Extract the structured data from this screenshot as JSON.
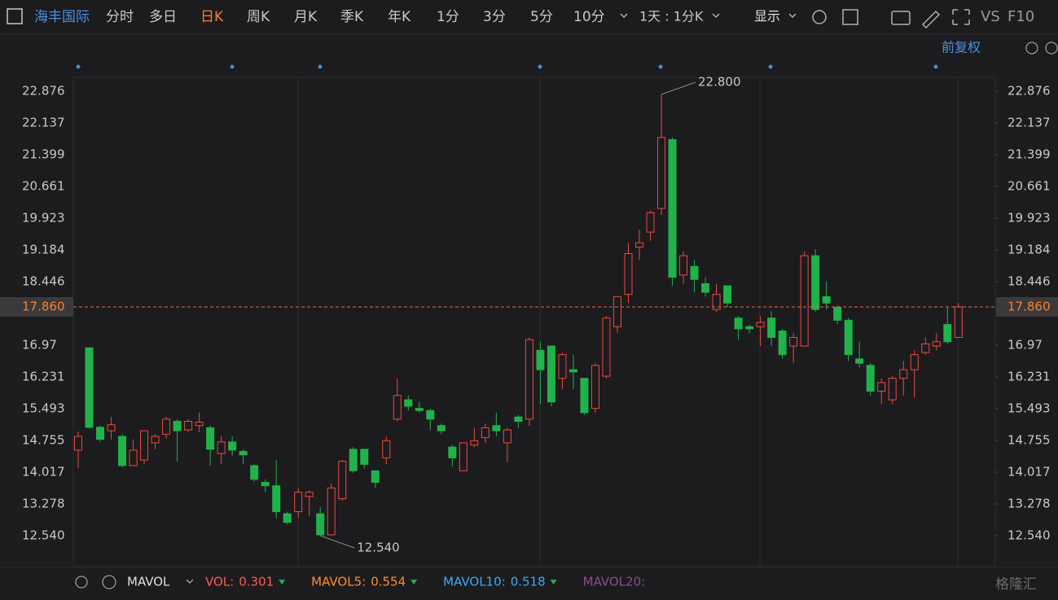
{
  "toolbar": {
    "symbol": "海丰国际",
    "periods": [
      "分时",
      "多日",
      "日K",
      "周K",
      "月K",
      "季K",
      "年K",
      "1分",
      "3分",
      "5分",
      "10分"
    ],
    "active_period": 2,
    "interval": "1天 : 1分K",
    "display": "显示",
    "vs": "VS",
    "f10": "F10"
  },
  "adjust": "前复权",
  "indicator": {
    "name": "MAVOL",
    "items": [
      {
        "label": "VOL:",
        "value": "0.301",
        "color": "#ff5a4f"
      },
      {
        "label": "MAVOL5:",
        "value": "0.554",
        "color": "#ff8c2e"
      },
      {
        "label": "MAVOL10:",
        "value": "0.518",
        "color": "#3fa9f5"
      },
      {
        "label": "MAVOL20:",
        "color": "#8e4b8a"
      }
    ]
  },
  "watermark": "格隆汇",
  "chart_data": {
    "type": "candlestick",
    "up_color": "#f0483e",
    "down_color": "#21b24b",
    "ylim": [
      11.84,
      23.198
    ],
    "yticks": [
      22.876,
      22.137,
      21.399,
      20.661,
      19.923,
      19.184,
      18.446,
      16.97,
      16.231,
      15.493,
      14.755,
      14.017,
      13.278,
      {
        "value": 12.54,
        "label": "12.540"
      }
    ],
    "last_price": {
      "value": 17.86,
      "label": "17.860"
    },
    "annotations": [
      {
        "value": 22.8,
        "label": "22.800",
        "index": 53
      },
      {
        "value": 12.54,
        "label": "12.540",
        "index": 22
      }
    ],
    "series": {
      "open": [
        14.53,
        16.91,
        15.06,
        14.98,
        14.85,
        14.17,
        14.3,
        14.7,
        14.9,
        15.2,
        15.0,
        15.1,
        15.05,
        14.45,
        14.72,
        14.5,
        14.17,
        13.78,
        13.7,
        13.05,
        13.1,
        13.45,
        13.05,
        12.56,
        13.4,
        14.55,
        14.55,
        14.05,
        14.35,
        15.25,
        15.7,
        15.5,
        15.45,
        15.1,
        14.6,
        14.05,
        14.65,
        14.82,
        15.1,
        14.7,
        15.3,
        15.25,
        16.85,
        16.95,
        16.2,
        16.4,
        16.2,
        15.5,
        16.25,
        17.4,
        18.15,
        19.25,
        19.6,
        20.15,
        21.75,
        18.6,
        18.8,
        18.4,
        17.8,
        18.35,
        17.6,
        17.4,
        17.4,
        17.6,
        17.3,
        16.95,
        16.95,
        19.05,
        18.1,
        17.85,
        17.55,
        16.65,
        16.5,
        15.9,
        15.7,
        16.2,
        16.4,
        16.8,
        16.95,
        17.45,
        17.15
      ],
      "high": [
        14.96,
        16.91,
        15.1,
        15.3,
        14.9,
        14.78,
        14.99,
        14.9,
        15.3,
        15.25,
        15.25,
        15.4,
        15.1,
        14.85,
        14.85,
        14.55,
        14.2,
        13.85,
        14.3,
        13.1,
        13.65,
        13.6,
        13.2,
        13.75,
        14.3,
        14.6,
        14.55,
        14.05,
        14.85,
        16.2,
        15.8,
        15.65,
        15.5,
        15.15,
        14.65,
        14.7,
        15.05,
        15.15,
        15.4,
        15.05,
        15.35,
        17.15,
        17.05,
        16.95,
        16.8,
        16.75,
        16.2,
        16.55,
        17.65,
        18.1,
        19.35,
        19.65,
        20.1,
        22.8,
        21.8,
        19.15,
        18.95,
        18.55,
        18.4,
        18.35,
        17.65,
        17.45,
        17.65,
        17.75,
        17.35,
        17.25,
        19.15,
        19.2,
        18.45,
        17.9,
        17.6,
        17.05,
        16.55,
        16.2,
        16.25,
        16.6,
        16.85,
        17.15,
        17.25,
        17.85,
        17.95
      ],
      "low": [
        14.11,
        15.03,
        14.72,
        14.78,
        14.12,
        14.17,
        14.2,
        14.55,
        14.8,
        14.26,
        14.95,
        14.95,
        14.17,
        14.2,
        14.4,
        14.2,
        13.8,
        13.55,
        12.95,
        12.8,
        12.95,
        13.0,
        12.54,
        12.55,
        13.35,
        14.0,
        14.1,
        13.65,
        14.2,
        15.2,
        15.45,
        15.4,
        15.0,
        14.9,
        14.15,
        14.05,
        14.6,
        14.7,
        14.85,
        14.25,
        15.05,
        15.1,
        15.6,
        15.55,
        15.95,
        15.95,
        15.35,
        15.4,
        16.2,
        17.25,
        17.95,
        18.95,
        19.4,
        20.0,
        18.35,
        18.4,
        18.2,
        18.1,
        17.75,
        17.85,
        17.1,
        17.25,
        16.95,
        16.95,
        16.65,
        16.55,
        16.95,
        17.75,
        17.8,
        17.45,
        16.6,
        16.45,
        15.8,
        15.6,
        15.6,
        15.8,
        15.75,
        16.75,
        16.85,
        17.0,
        17.15
      ],
      "close": [
        14.85,
        15.06,
        14.78,
        15.12,
        14.17,
        14.53,
        14.98,
        14.85,
        15.25,
        14.98,
        15.2,
        15.18,
        14.55,
        14.72,
        14.53,
        14.42,
        13.85,
        13.7,
        13.1,
        12.85,
        13.55,
        13.55,
        12.56,
        13.65,
        14.27,
        14.05,
        14.2,
        13.78,
        14.75,
        15.8,
        15.55,
        15.45,
        15.25,
        14.98,
        14.35,
        14.7,
        14.75,
        15.05,
        14.98,
        15.0,
        15.2,
        17.1,
        16.4,
        15.65,
        16.75,
        16.35,
        15.4,
        16.5,
        17.6,
        18.1,
        19.1,
        19.35,
        20.05,
        21.8,
        18.55,
        19.05,
        18.5,
        18.2,
        18.15,
        17.95,
        17.35,
        17.35,
        17.5,
        17.15,
        16.75,
        17.15,
        19.05,
        17.8,
        17.95,
        17.55,
        16.75,
        16.55,
        15.9,
        16.1,
        16.2,
        16.4,
        16.75,
        17.0,
        17.05,
        17.05,
        17.86
      ]
    }
  }
}
